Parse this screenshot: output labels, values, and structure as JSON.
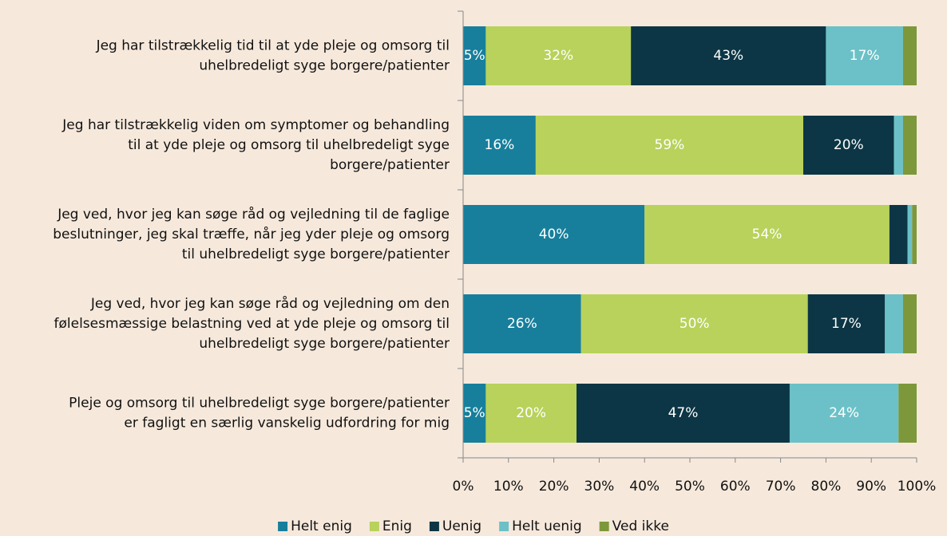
{
  "chart_data": {
    "type": "stacked-bar-horizontal",
    "categories": [
      [
        "Jeg har tilstrækkelig tid til at yde pleje og omsorg til",
        "uhelbredeligt syge borgere/patienter"
      ],
      [
        "Jeg har tilstrækkelig viden om symptomer og behandling",
        "til at yde pleje og omsorg til uhelbredeligt syge",
        "borgere/patienter"
      ],
      [
        "Jeg ved, hvor jeg kan søge råd og vejledning til de faglige",
        "beslutninger, jeg skal træffe, når jeg yder pleje og omsorg",
        "til uhelbredeligt syge borgere/patienter"
      ],
      [
        "Jeg ved, hvor jeg kan søge råd og vejledning om  den",
        "følelsesmæssige belastning ved at yde pleje og omsorg til",
        "uhelbredeligt syge borgere/patienter"
      ],
      [
        "Pleje og omsorg til uhelbredeligt syge borgere/patienter",
        "er fagligt en særlig vanskelig udfordring for mig"
      ]
    ],
    "series": [
      {
        "name": "Helt enig",
        "color": "#177f9c",
        "values": [
          5,
          16,
          40,
          26,
          5
        ],
        "value_labels": [
          "5%",
          "16%",
          "40%",
          "26%",
          "5%"
        ]
      },
      {
        "name": "Enig",
        "color": "#b8d25b",
        "values": [
          32,
          59,
          54,
          50,
          20
        ],
        "value_labels": [
          "32%",
          "59%",
          "54%",
          "50%",
          "20%"
        ]
      },
      {
        "name": "Uenig",
        "color": "#0c3645",
        "values": [
          43,
          20,
          4,
          17,
          47
        ],
        "value_labels": [
          "43%",
          "20%",
          null,
          "17%",
          "47%"
        ]
      },
      {
        "name": "Helt uenig",
        "color": "#6bc1c7",
        "values": [
          17,
          2,
          1,
          4,
          24
        ],
        "value_labels": [
          "17%",
          null,
          null,
          null,
          "24%"
        ]
      },
      {
        "name": "Ved ikke",
        "color": "#7d983b",
        "values": [
          3,
          3,
          1,
          3,
          4
        ],
        "value_labels": [
          null,
          null,
          null,
          null,
          null
        ]
      }
    ],
    "xlim": [
      0,
      100
    ],
    "xticks": [
      {
        "value": 0,
        "label": "0%"
      },
      {
        "value": 10,
        "label": "10%"
      },
      {
        "value": 20,
        "label": "20%"
      },
      {
        "value": 30,
        "label": "30%"
      },
      {
        "value": 40,
        "label": "40%"
      },
      {
        "value": 50,
        "label": "50%"
      },
      {
        "value": 60,
        "label": "60%"
      },
      {
        "value": 70,
        "label": "70%"
      },
      {
        "value": 80,
        "label": "80%"
      },
      {
        "value": 90,
        "label": "90%"
      },
      {
        "value": 100,
        "label": "100%"
      }
    ],
    "legend": "bottom"
  }
}
